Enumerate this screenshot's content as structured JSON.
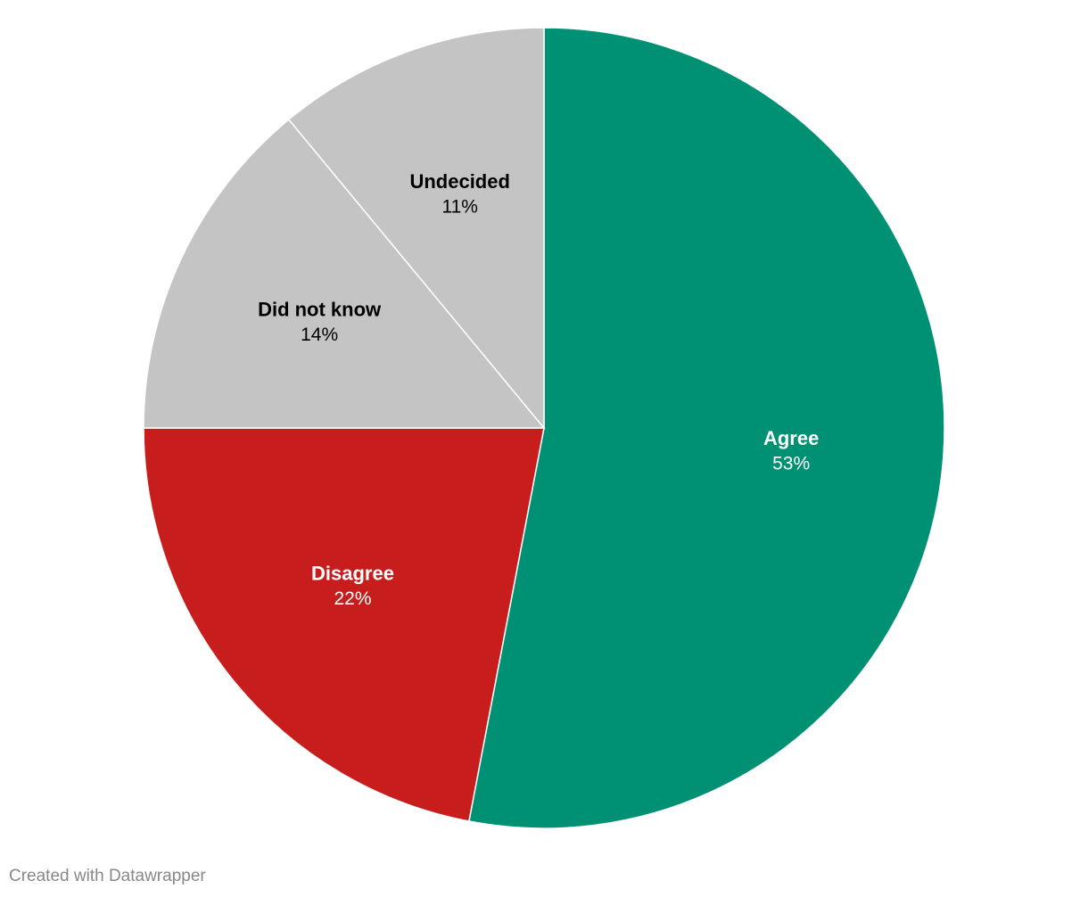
{
  "chart_data": {
    "type": "pie",
    "categories": [
      "Agree",
      "Disagree",
      "Did not know",
      "Undecided"
    ],
    "values": [
      53,
      22,
      14,
      11
    ],
    "value_labels": [
      "53%",
      "22%",
      "14%",
      "11%"
    ],
    "colors": [
      "#009175",
      "#c71e1d",
      "#c4c4c4",
      "#c4c4c4"
    ],
    "footer": "Created with Datawrapper"
  }
}
